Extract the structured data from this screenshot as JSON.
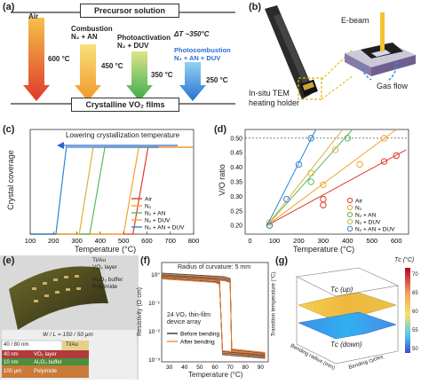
{
  "panels": {
    "a": {
      "label": "(a)",
      "header": "Precursor solution",
      "footer": "Crystalline VO₂ films",
      "delta": "ΔT ~350°C",
      "arrows": [
        {
          "name": "Air",
          "temp": "600 °C",
          "color": "#e0382b"
        },
        {
          "name": "Combustion\nN₂ + AN",
          "temp": "450 °C",
          "color": "#f2a32a"
        },
        {
          "name": "Photoactivation\nN₂ + DUV",
          "temp": "350 °C",
          "color": "#5bb85d"
        },
        {
          "name": "Photocombustion\nN₂ + AN + DUV",
          "temp": "250 °C",
          "color": "#2f84d6"
        }
      ]
    },
    "b": {
      "label": "(b)",
      "ebeam": "E-beam",
      "gasflow": "Gas flow",
      "holder": "In-situ TEM\nheating holder"
    },
    "c": {
      "label": "(c)",
      "annotation": "Lowering crystallization temperature",
      "ylabel": "Crystal coverage",
      "xlabel": "Temperature (°C)",
      "xticks": [
        100,
        200,
        300,
        400,
        500,
        600,
        700,
        800
      ],
      "legend": [
        "Air",
        "N₂",
        "N₂ + AN",
        "N₂ + DUV",
        "N₂ + AN + DUV"
      ]
    },
    "d": {
      "label": "(d)",
      "ylabel": "V/O ratio",
      "xlabel": "Temperature (°C)",
      "xticks": [
        0,
        100,
        200,
        300,
        400,
        500,
        600
      ],
      "yticks": [
        "0.50",
        "0.45",
        "0.40",
        "0.35",
        "0.30",
        "0.25",
        "0.20"
      ],
      "legend": [
        "Air",
        "N₂",
        "N₂ + AN",
        "N₂ + DUV",
        "N₂ + AN + DUV"
      ]
    },
    "e": {
      "label": "(e)",
      "layers_right": [
        "Ti/Au",
        "VO₂ layer",
        "Al₂O₃ buffer",
        "Polyimide"
      ],
      "wl": "W / L = 150 / 50 μm",
      "stack": [
        {
          "thick": "40 / 80 nm",
          "name": "Ti/Au"
        },
        {
          "thick": "40 nm",
          "name": "VO₂ layer"
        },
        {
          "thick": "10 nm",
          "name": "Al₂O₃ buffer"
        },
        {
          "thick": "100 μm",
          "name": "Polyimide"
        }
      ]
    },
    "f": {
      "label": "(f)",
      "title": "Radius of curvature: 5 mm",
      "ylabel": "Resistivity (Ω·cm)",
      "xlabel": "Temperature (°C)",
      "xticks": [
        30,
        40,
        50,
        60,
        70,
        80,
        90
      ],
      "yticks": [
        "10°",
        "10⁻¹",
        "10⁻²",
        "10⁻³"
      ],
      "array_text": "24 VO₂ thin-film\ndevice array",
      "legend": [
        "Before bending",
        "After bending"
      ]
    },
    "g": {
      "label": "(g)",
      "tc_up": "Tᴄ (up)",
      "tc_down": "Tᴄ (down)",
      "zlabel": "Transition temperature (°C)",
      "xlabel": "Bending cycles",
      "ylabel": "Bending radius (mm)",
      "colorbar_title": "Tᴄ (°C)",
      "colorbar_ticks": [
        "70",
        "65",
        "60",
        "55",
        "50"
      ]
    }
  },
  "chart_data": [
    {
      "type": "line",
      "panel": "c",
      "x": [
        100,
        800
      ],
      "ylabel": "Crystal coverage",
      "xlabel": "Temperature (°C)",
      "series": [
        {
          "name": "Air",
          "color": "#e0382b",
          "x": [
            100,
            540,
            605,
            800
          ],
          "y": [
            0,
            0,
            1,
            1
          ]
        },
        {
          "name": "N₂",
          "color": "#f2a32a",
          "x": [
            100,
            500,
            565,
            800
          ],
          "y": [
            0,
            0,
            1,
            1
          ]
        },
        {
          "name": "N₂ + AN",
          "color": "#5bb85d",
          "x": [
            100,
            355,
            420,
            650
          ],
          "y": [
            0,
            0,
            1,
            1
          ]
        },
        {
          "name": "N₂ + DUV",
          "color": "#e0b13b",
          "x": [
            100,
            310,
            370,
            650
          ],
          "y": [
            0,
            0,
            1,
            1
          ]
        },
        {
          "name": "N₂ + AN + DUV",
          "color": "#2f84d6",
          "x": [
            100,
            210,
            255,
            650
          ],
          "y": [
            0,
            0,
            1,
            1
          ]
        }
      ]
    },
    {
      "type": "scatter",
      "panel": "d",
      "xlabel": "Temperature (°C)",
      "ylabel": "V/O ratio",
      "series": [
        {
          "name": "Air",
          "color": "#e0382b",
          "x": [
            300,
            300,
            600,
            550
          ],
          "y": [
            0.29,
            0.27,
            0.44,
            0.42
          ]
        },
        {
          "name": "N₂",
          "color": "#f2a32a",
          "x": [
            300,
            450,
            550
          ],
          "y": [
            0.34,
            0.41,
            0.5
          ]
        },
        {
          "name": "N₂ + AN",
          "color": "#5bb85d",
          "x": [
            80,
            250,
            400
          ],
          "y": [
            0.2,
            0.35,
            0.5
          ]
        },
        {
          "name": "N₂ + DUV",
          "color": "#e0b13b",
          "x": [
            80,
            250,
            350
          ],
          "y": [
            0.21,
            0.38,
            0.46
          ]
        },
        {
          "name": "N₂ + AN + DUV",
          "color": "#2f84d6",
          "x": [
            80,
            150,
            200,
            250
          ],
          "y": [
            0.2,
            0.29,
            0.41,
            0.5
          ]
        }
      ]
    },
    {
      "type": "line",
      "panel": "f",
      "xlabel": "Temperature (°C)",
      "ylabel": "Resistivity (Ω·cm)",
      "series": [
        {
          "name": "Before bending",
          "color": "#222222"
        },
        {
          "name": "After bending",
          "color": "#ee7c2c"
        }
      ]
    }
  ]
}
